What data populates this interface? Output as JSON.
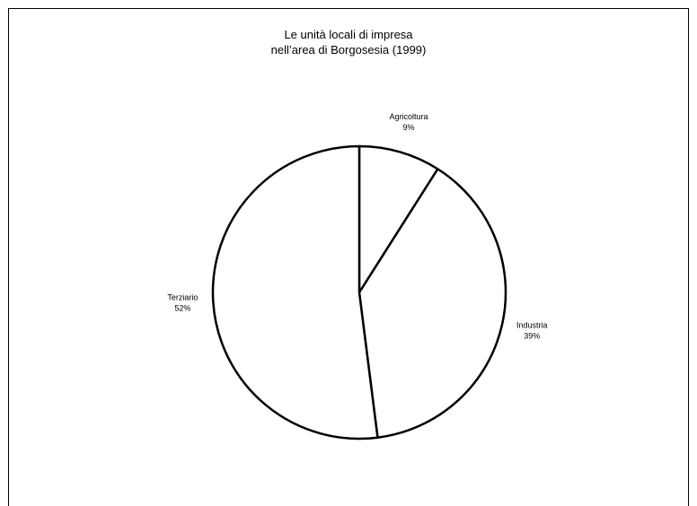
{
  "chart_data": {
    "type": "pie",
    "title": "Le unità locali di impresa\nnell’area di Borgosesia (1999)",
    "categories": [
      "Agricoltura",
      "Industria",
      "Terziario"
    ],
    "values": [
      9,
      39,
      52
    ],
    "value_labels": [
      "9%",
      "39%",
      "52%"
    ],
    "colors": [
      "#ffffff",
      "#ffffff",
      "#ffffff"
    ],
    "edge_color": "#000000"
  }
}
